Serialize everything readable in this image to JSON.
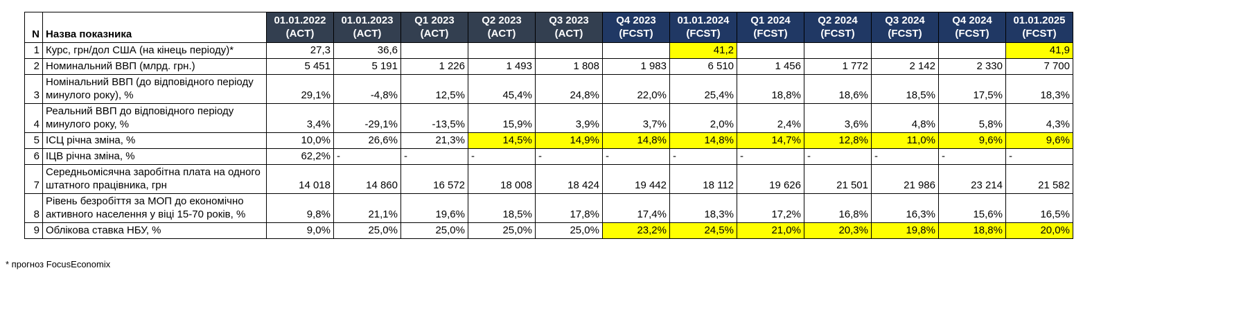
{
  "colors": {
    "act_header_bg": "#333F50",
    "fcst_header_bg": "#203864",
    "header_text": "#FFFFFF",
    "highlight_bg": "#FFFF00",
    "border": "#000000"
  },
  "table": {
    "corner": {
      "n_label": "N",
      "name_label": "Назва показника"
    },
    "columns": [
      {
        "label": "01.01.2022",
        "sub": "(ACT)",
        "group": "act"
      },
      {
        "label": "01.01.2023",
        "sub": "(ACT)",
        "group": "act"
      },
      {
        "label": "Q1 2023",
        "sub": "(ACT)",
        "group": "act"
      },
      {
        "label": "Q2 2023",
        "sub": "(ACT)",
        "group": "act"
      },
      {
        "label": "Q3 2023",
        "sub": "(ACT)",
        "group": "act"
      },
      {
        "label": "Q4 2023",
        "sub": "(FCST)",
        "group": "fcst"
      },
      {
        "label": "01.01.2024",
        "sub": "(FCST)",
        "group": "fcst"
      },
      {
        "label": "Q1 2024",
        "sub": "(FCST)",
        "group": "fcst"
      },
      {
        "label": "Q2 2024",
        "sub": "(FCST)",
        "group": "fcst"
      },
      {
        "label": "Q3 2024",
        "sub": "(FCST)",
        "group": "fcst"
      },
      {
        "label": "Q4 2024",
        "sub": "(FCST)",
        "group": "fcst"
      },
      {
        "label": "01.01.2025",
        "sub": "(FCST)",
        "group": "fcst"
      }
    ],
    "rows": [
      {
        "n": "1",
        "name": "Курс, грн/дол США (на кінець періоду)*",
        "values": [
          "27,3",
          "36,6",
          "",
          "",
          "",
          "",
          "41,2",
          "",
          "",
          "",
          "",
          "41,9"
        ],
        "highlights": [
          6,
          11
        ]
      },
      {
        "n": "2",
        "name": "Номинальний ВВП (млрд. грн.)",
        "values": [
          "5 451",
          "5 191",
          "1 226",
          "1 493",
          "1 808",
          "1 983",
          "6 510",
          "1 456",
          "1 772",
          "2 142",
          "2 330",
          "7 700"
        ],
        "highlights": []
      },
      {
        "n": "3",
        "name": "Номінальний ВВП (до відповідного періоду минулого року), %",
        "values": [
          "29,1%",
          "-4,8%",
          "12,5%",
          "45,4%",
          "24,8%",
          "22,0%",
          "25,4%",
          "18,8%",
          "18,6%",
          "18,5%",
          "17,5%",
          "18,3%"
        ],
        "highlights": []
      },
      {
        "n": "4",
        "name": "Реальний ВВП до відповідного періоду минулого року, %",
        "values": [
          "3,4%",
          "-29,1%",
          "-13,5%",
          "15,9%",
          "3,9%",
          "3,7%",
          "2,0%",
          "2,4%",
          "3,6%",
          "4,8%",
          "5,8%",
          "4,3%"
        ],
        "highlights": []
      },
      {
        "n": "5",
        "name": "ІСЦ річна зміна, %",
        "values": [
          "10,0%",
          "26,6%",
          "21,3%",
          "14,5%",
          "14,9%",
          "14,8%",
          "14,8%",
          "14,7%",
          "12,8%",
          "11,0%",
          "9,6%",
          "9,6%"
        ],
        "highlights": [
          3,
          4,
          5,
          6,
          7,
          8,
          9,
          10,
          11
        ]
      },
      {
        "n": "6",
        "name": "ІЦВ річна зміна, %",
        "values": [
          "62,2%",
          "-",
          "-",
          "-",
          "-",
          "-",
          "-",
          "-",
          "-",
          "-",
          "-",
          "-"
        ],
        "highlights": []
      },
      {
        "n": "7",
        "name": "Середньомісячна заробітна плата на одного штатного працівника, грн",
        "values": [
          "14 018",
          "14 860",
          "16 572",
          "18 008",
          "18 424",
          "19 442",
          "18 112",
          "19 626",
          "21 501",
          "21 986",
          "23 214",
          "21 582"
        ],
        "highlights": []
      },
      {
        "n": "8",
        "name": "Рівень безробіття за МОП до економічно активного населення у віці 15-70 років, %",
        "values": [
          "9,8%",
          "21,1%",
          "19,6%",
          "18,5%",
          "17,8%",
          "17,4%",
          "18,3%",
          "17,2%",
          "16,8%",
          "16,3%",
          "15,6%",
          "16,5%"
        ],
        "highlights": []
      },
      {
        "n": "9",
        "name": "Облікова ставка НБУ, %",
        "values": [
          "9,0%",
          "25,0%",
          "25,0%",
          "25,0%",
          "25,0%",
          "23,2%",
          "24,5%",
          "21,0%",
          "20,3%",
          "19,8%",
          "18,8%",
          "20,0%"
        ],
        "highlights": [
          5,
          6,
          7,
          8,
          9,
          10,
          11
        ]
      }
    ]
  },
  "footnote": "* прогноз FocusEconomix"
}
